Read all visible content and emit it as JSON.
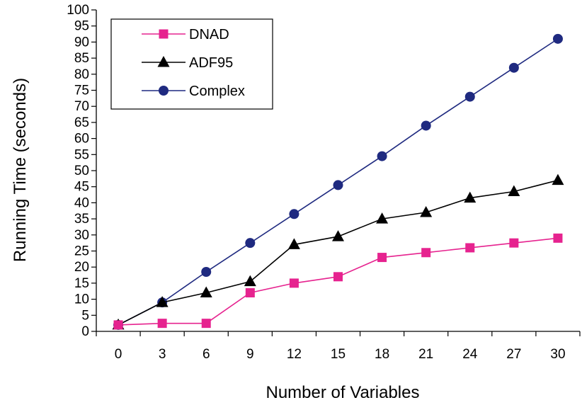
{
  "chart_data": {
    "type": "line",
    "xlabel": "Number of Variables",
    "ylabel": "Running Time (seconds)",
    "x": [
      0,
      3,
      6,
      9,
      12,
      15,
      18,
      21,
      24,
      27,
      30
    ],
    "xlim": [
      0,
      30
    ],
    "ylim": [
      0,
      100
    ],
    "y_ticks": [
      0,
      5,
      10,
      15,
      20,
      25,
      30,
      35,
      40,
      45,
      50,
      55,
      60,
      65,
      70,
      75,
      80,
      85,
      90,
      95,
      100
    ],
    "grid": false,
    "legend_position": "top-left",
    "series": [
      {
        "name": "DNAD",
        "marker": "square",
        "color": "#e6238f",
        "values": [
          2,
          2.5,
          2.5,
          12,
          15,
          17,
          23,
          24.5,
          26,
          27.5,
          29
        ]
      },
      {
        "name": "ADF95",
        "marker": "triangle",
        "color": "#000000",
        "values": [
          2,
          9,
          12,
          15.5,
          27,
          29.5,
          35,
          37,
          41.5,
          43.5,
          47
        ]
      },
      {
        "name": "Complex",
        "marker": "circle",
        "color": "#1f2a80",
        "values": [
          2,
          9,
          18.5,
          27.5,
          36.5,
          45.5,
          54.5,
          64,
          73,
          82,
          91
        ]
      }
    ]
  }
}
